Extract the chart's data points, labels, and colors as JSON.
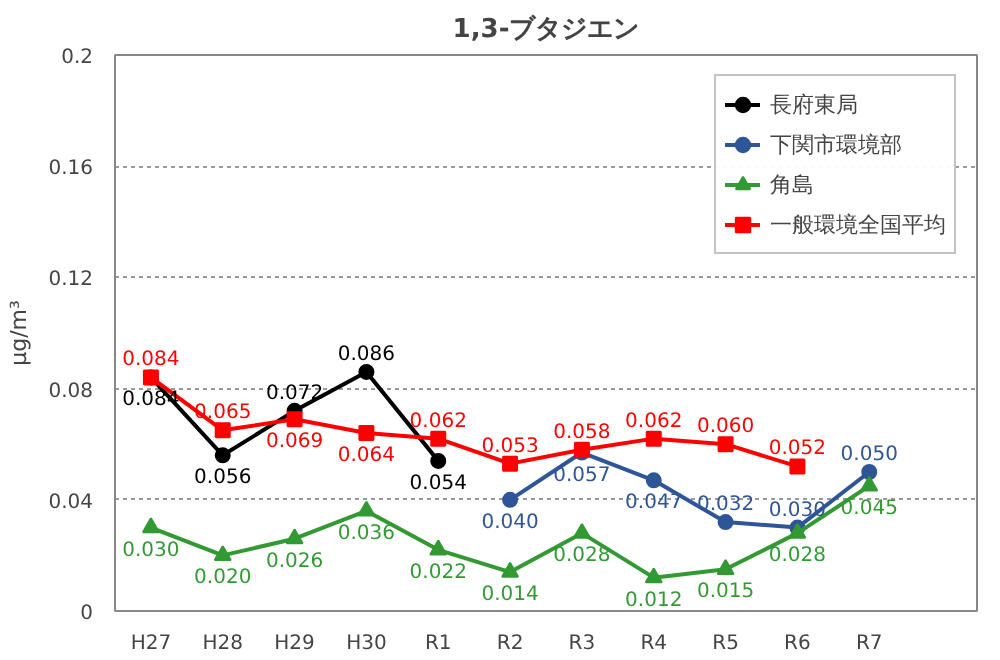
{
  "chart_data": {
    "type": "line",
    "title": "1,3-ブタジエン",
    "ylabel": "μg/m³",
    "categories": [
      "H27",
      "H28",
      "H29",
      "H30",
      "R1",
      "R2",
      "R3",
      "R4",
      "R5",
      "R6",
      "R7",
      null
    ],
    "ylim": [
      0,
      0.2
    ],
    "yticks": [
      {
        "value": 0,
        "label": "0"
      },
      0.04,
      0.08,
      0.12,
      0.16,
      0.2
    ],
    "grid": "y",
    "legend": "top right",
    "series": [
      {
        "name": "長府東局",
        "color": "#000000",
        "marker": "circle",
        "values": [
          0.084,
          0.056,
          0.072,
          0.086,
          0.054,
          null,
          null,
          null,
          null,
          null,
          null,
          null
        ],
        "value_labels": [
          "0.084",
          "0.056",
          "0.072",
          "0.086",
          "0.054",
          null,
          null,
          null,
          null,
          null,
          null,
          null
        ]
      },
      {
        "name": "下関市環境部",
        "color": "#2e5597",
        "marker": "circle",
        "values": [
          null,
          null,
          null,
          null,
          null,
          0.04,
          0.057,
          0.047,
          0.032,
          0.03,
          0.05,
          null
        ],
        "value_labels": [
          null,
          null,
          null,
          null,
          null,
          "0.040",
          "0.057",
          "0.047",
          "0.032",
          "0.030",
          "0.050",
          null
        ]
      },
      {
        "name": "角島",
        "color": "#339933",
        "marker": "triangle",
        "values": [
          0.03,
          0.02,
          0.026,
          0.036,
          0.022,
          0.014,
          0.028,
          0.012,
          0.015,
          0.028,
          0.045,
          null
        ],
        "value_labels": [
          "0.030",
          "0.020",
          "0.026",
          "0.036",
          "0.022",
          "0.014",
          "0.028",
          "0.012",
          "0.015",
          "0.028",
          "0.045",
          null
        ]
      },
      {
        "name": "一般環境全国平均",
        "color": "#ff0000",
        "marker": "square",
        "values": [
          0.084,
          0.065,
          0.069,
          0.064,
          0.062,
          0.053,
          0.058,
          0.062,
          0.06,
          0.052,
          null,
          null
        ],
        "value_labels": [
          "0.084",
          "0.065",
          "0.069",
          "0.064",
          "0.062",
          "0.053",
          "0.058",
          "0.062",
          "0.060",
          "0.052",
          null,
          null
        ]
      }
    ]
  }
}
